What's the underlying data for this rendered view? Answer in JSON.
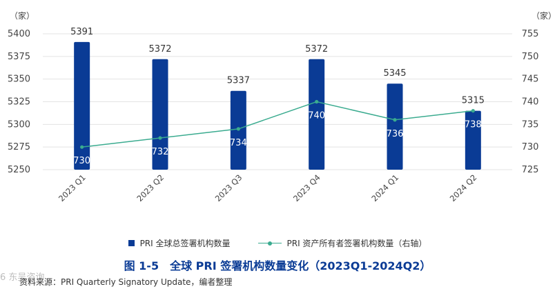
{
  "chart_data": {
    "type": "bar",
    "categories": [
      "2023 Q1",
      "2023 Q2",
      "2023 Q3",
      "2023 Q4",
      "2024 Q1",
      "2024 Q2"
    ],
    "series": [
      {
        "name": "PRI 全球总签署机构数量",
        "type": "bar",
        "axis": "left",
        "values": [
          5391,
          5372,
          5337,
          5372,
          5345,
          5315
        ],
        "color": "#0a3b95"
      },
      {
        "name": "PRI 资产所有者签署机构数量（右轴）",
        "type": "line",
        "axis": "right",
        "values": [
          730,
          732,
          734,
          740,
          736,
          738
        ],
        "color": "#3aab8f"
      }
    ],
    "y_left": {
      "unit": "（家）",
      "ylim": [
        5250,
        5400
      ],
      "ticks": [
        5250,
        5275,
        5300,
        5325,
        5350,
        5375,
        5400
      ]
    },
    "y_right": {
      "unit": "（家）",
      "ylim": [
        725,
        755
      ],
      "ticks": [
        725,
        730,
        735,
        740,
        745,
        750,
        755
      ]
    },
    "grid": true,
    "legend_position": "bottom"
  },
  "caption": "图 1-5　全球 PRI 签署机构数量变化（2023Q1-2024Q2）",
  "source": "资料来源：PRI Quarterly Signatory Update，编者整理",
  "watermark": "6 东吴咨询"
}
